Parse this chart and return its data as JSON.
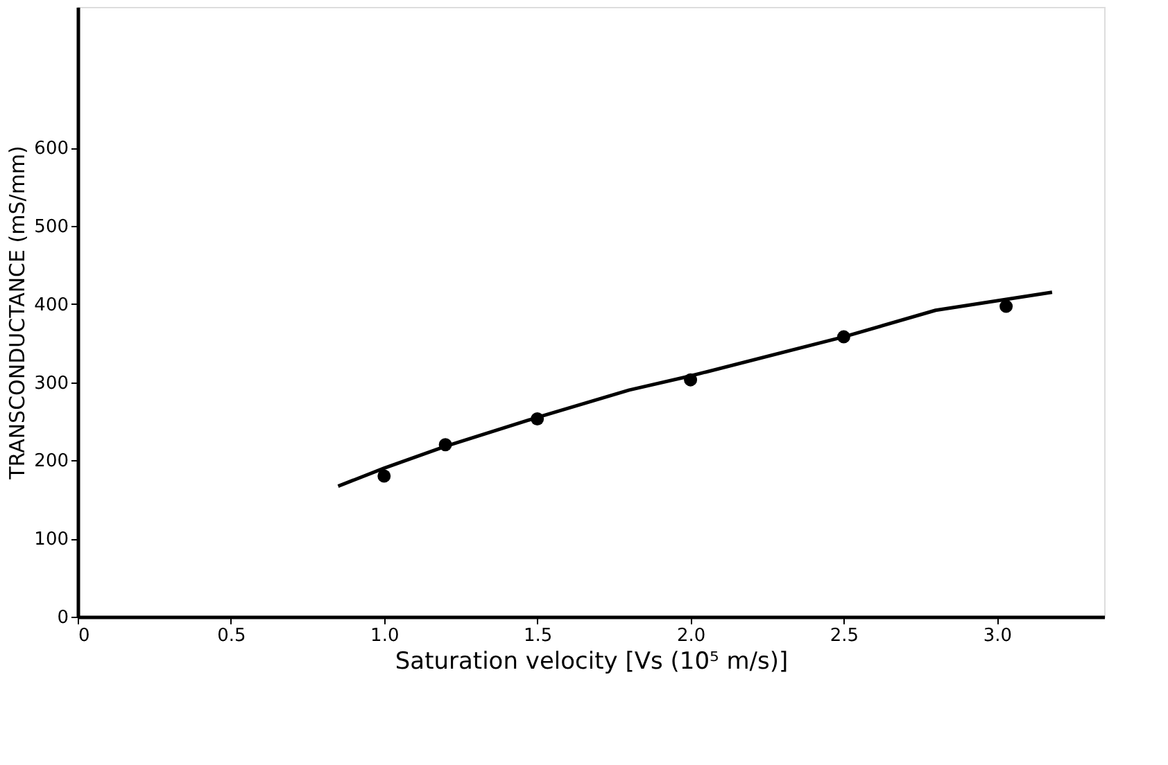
{
  "chart_data": {
    "type": "scatter",
    "xlabel": "Saturation velocity [Vs (10⁵ m/s)]",
    "ylabel": "TRANSCONDUCTANCE (mS/mm)",
    "xlim": [
      0,
      3.35
    ],
    "ylim": [
      0,
      780
    ],
    "xticks": [
      0,
      0.5,
      {
        "value": 1.0,
        "label": "1.0"
      },
      1.5,
      {
        "value": 2.0,
        "label": "2.0"
      },
      2.5,
      {
        "value": 3.0,
        "label": "3.0"
      }
    ],
    "yticks": [
      0,
      100,
      200,
      300,
      400,
      500,
      600
    ],
    "grid": false,
    "series": [
      {
        "type": "line",
        "color": "#000000",
        "marker": "none",
        "line_style": "solid",
        "x": [
          0.85,
          1.0,
          1.2,
          1.5,
          1.8,
          2.0,
          2.5,
          2.8,
          3.18
        ],
        "values": [
          167,
          190,
          218,
          255,
          290,
          308,
          358,
          392,
          415
        ]
      },
      {
        "color": "#000000",
        "marker": "circle",
        "x": [
          1.0,
          1.2,
          1.5,
          2.0,
          2.5,
          3.03
        ],
        "values": [
          180,
          220,
          253,
          303,
          358,
          397
        ]
      }
    ]
  }
}
